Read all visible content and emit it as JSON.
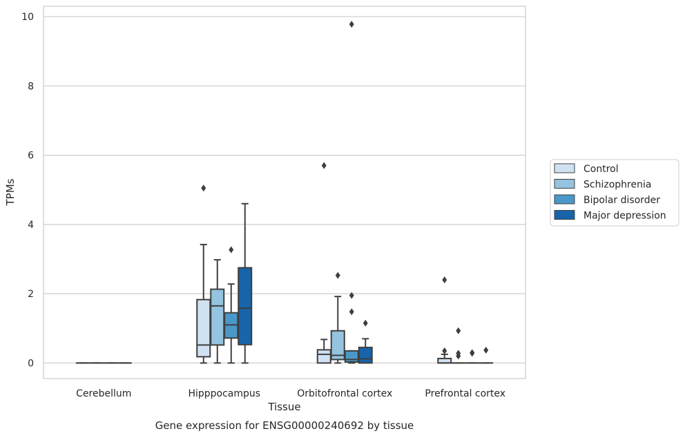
{
  "caption": "Gene expression for ENSG00000240692 by tissue",
  "chart_data": {
    "type": "box",
    "xlabel": "Tissue",
    "ylabel": "TPMs",
    "ylim": [
      -0.45,
      10.3
    ],
    "yticks": [
      0,
      2,
      4,
      6,
      8,
      10
    ],
    "ytick_labels": [
      "0",
      "2",
      "4",
      "6",
      "8",
      "10"
    ],
    "grid": true,
    "legend_position": "right",
    "categories": [
      "Cerebellum",
      "Hipppocampus",
      "Orbitofrontal cortex",
      "Prefrontal cortex"
    ],
    "series": [
      {
        "name": "Control",
        "color": "#d0e1f2",
        "boxes": [
          {
            "whislo": 0,
            "q1": 0,
            "med": 0,
            "q3": 0,
            "whishi": 0,
            "fliers": []
          },
          {
            "whislo": 0,
            "q1": 0.18,
            "med": 0.52,
            "q3": 1.83,
            "whishi": 3.42,
            "fliers": [
              5.05
            ]
          },
          {
            "whislo": 0,
            "q1": 0,
            "med": 0.25,
            "q3": 0.38,
            "whishi": 0.68,
            "fliers": [
              5.7
            ]
          },
          {
            "whislo": 0,
            "q1": 0,
            "med": 0,
            "q3": 0.13,
            "whishi": 0.25,
            "fliers": [
              0.35,
              2.4
            ]
          }
        ]
      },
      {
        "name": "Schizophrenia",
        "color": "#94c4df",
        "boxes": [
          {
            "whislo": 0,
            "q1": 0,
            "med": 0,
            "q3": 0,
            "whishi": 0,
            "fliers": []
          },
          {
            "whislo": 0,
            "q1": 0.52,
            "med": 1.65,
            "q3": 2.13,
            "whishi": 2.98,
            "fliers": []
          },
          {
            "whislo": 0,
            "q1": 0.1,
            "med": 0.22,
            "q3": 0.93,
            "whishi": 1.92,
            "fliers": [
              2.53
            ]
          },
          {
            "whislo": 0,
            "q1": 0,
            "med": 0,
            "q3": 0,
            "whishi": 0,
            "fliers": [
              0.2,
              0.28,
              0.93
            ]
          }
        ]
      },
      {
        "name": "Bipolar disorder",
        "color": "#4a98c9",
        "boxes": [
          {
            "whislo": 0,
            "q1": 0,
            "med": 0,
            "q3": 0,
            "whishi": 0,
            "fliers": []
          },
          {
            "whislo": 0,
            "q1": 0.72,
            "med": 1.1,
            "q3": 1.45,
            "whishi": 2.28,
            "fliers": [
              3.27
            ]
          },
          {
            "whislo": 0,
            "q1": 0.03,
            "med": 0.1,
            "q3": 0.35,
            "whishi": 0.35,
            "fliers": [
              1.48,
              1.95,
              9.78
            ]
          },
          {
            "whislo": 0,
            "q1": 0,
            "med": 0,
            "q3": 0,
            "whishi": 0,
            "fliers": [
              0.28,
              0.3
            ]
          }
        ]
      },
      {
        "name": "Major depression",
        "color": "#1764ab",
        "boxes": [
          {
            "whislo": 0,
            "q1": 0,
            "med": 0,
            "q3": 0,
            "whishi": 0,
            "fliers": []
          },
          {
            "whislo": 0,
            "q1": 0.53,
            "med": 1.58,
            "q3": 2.75,
            "whishi": 4.6,
            "fliers": []
          },
          {
            "whislo": 0,
            "q1": 0,
            "med": 0.12,
            "q3": 0.45,
            "whishi": 0.7,
            "fliers": [
              1.15
            ]
          },
          {
            "whislo": 0,
            "q1": 0,
            "med": 0,
            "q3": 0,
            "whishi": 0,
            "fliers": [
              0.37
            ]
          }
        ]
      }
    ]
  }
}
